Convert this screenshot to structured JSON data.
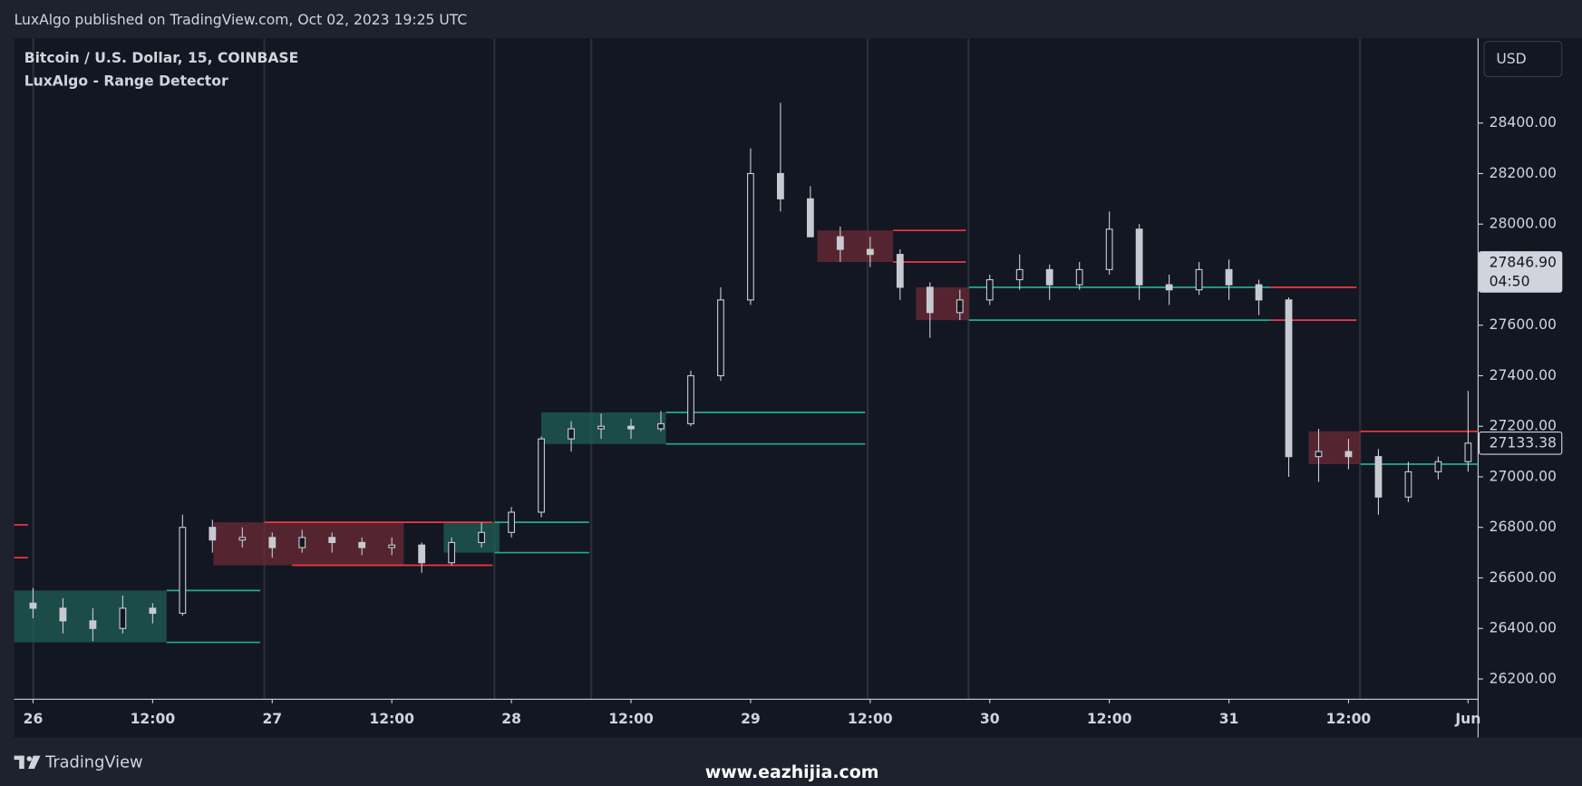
{
  "header": {
    "text": "LuxAlgo published on TradingView.com, Oct 02, 2023 19:25 UTC"
  },
  "footer": {
    "brand": "TradingView",
    "watermark": "www.eazhijia.com"
  },
  "chart_data": {
    "type": "candlestick",
    "title": "Bitcoin / U.S. Dollar, 15, COINBASE",
    "subtitle": "LuxAlgo - Range Detector",
    "currency": "USD",
    "color": "#c8cad2",
    "grid": false,
    "x": [
      0,
      3,
      6,
      9,
      12,
      15,
      18,
      21,
      24,
      27,
      30,
      33,
      36,
      39,
      42,
      45,
      48,
      51,
      54,
      57,
      60,
      63,
      66,
      69,
      72,
      75,
      78,
      81,
      84,
      87,
      90,
      93,
      96,
      99,
      102,
      105,
      108,
      111,
      114,
      117,
      120,
      123,
      126,
      129,
      132,
      135,
      138,
      141,
      144
    ],
    "open": [
      26500,
      26480,
      26430,
      26400,
      26480,
      26460,
      26800,
      26750,
      26760,
      26720,
      26760,
      26740,
      26720,
      26730,
      26660,
      26740,
      26780,
      26860,
      27150,
      27190,
      27200,
      27190,
      27210,
      27400,
      27700,
      28200,
      28100,
      27950,
      27900,
      27880,
      27750,
      27650,
      27700,
      27780,
      27820,
      27760,
      27820,
      27980,
      27760,
      27740,
      27820,
      27760,
      27700,
      27080,
      27100,
      27080,
      26920,
      27020,
      27060
    ],
    "high": [
      26560,
      26520,
      26480,
      26530,
      26500,
      26850,
      26830,
      26800,
      26780,
      26790,
      26780,
      26760,
      26760,
      26740,
      26760,
      26820,
      26880,
      27160,
      27220,
      27250,
      27230,
      27260,
      27420,
      27750,
      28300,
      28480,
      28150,
      27990,
      27950,
      27900,
      27770,
      27740,
      27800,
      27880,
      27840,
      27850,
      28050,
      28000,
      27800,
      27850,
      27860,
      27780,
      27710,
      27190,
      27150,
      27110,
      27060,
      27080,
      27340
    ],
    "low": [
      26440,
      26380,
      26350,
      26380,
      26420,
      26450,
      26700,
      26720,
      26680,
      26700,
      26700,
      26690,
      26690,
      26620,
      26650,
      26720,
      26760,
      26840,
      27100,
      27150,
      27150,
      27180,
      27200,
      27380,
      27680,
      28050,
      27950,
      27850,
      27830,
      27700,
      27550,
      27620,
      27680,
      27740,
      27700,
      27740,
      27800,
      27700,
      27680,
      27720,
      27700,
      27640,
      27000,
      26980,
      27030,
      26850,
      26900,
      26990,
      27020
    ],
    "close": [
      26480,
      26430,
      26400,
      26480,
      26460,
      26800,
      26750,
      26760,
      26720,
      26760,
      26740,
      26720,
      26730,
      26660,
      26740,
      26780,
      26860,
      27150,
      27190,
      27200,
      27190,
      27210,
      27400,
      27700,
      28200,
      28100,
      27950,
      27900,
      27880,
      27750,
      27650,
      27700,
      27780,
      27820,
      27760,
      27820,
      27980,
      27760,
      27740,
      27820,
      27760,
      27700,
      27080,
      27100,
      27080,
      26920,
      27020,
      27060,
      27133.38
    ],
    "ranges": [
      {
        "x": [
          -1.9,
          13.4
        ],
        "top": 26550,
        "bottom": 26345,
        "color": "#1f5f55"
      },
      {
        "x": [
          18.1,
          37.2
        ],
        "top": 26820,
        "bottom": 26650,
        "color": "#6b2b35"
      },
      {
        "x": [
          41.2,
          46.8
        ],
        "top": 26820,
        "bottom": 26700,
        "color": "#1f5f55"
      },
      {
        "x": [
          51,
          63.5
        ],
        "top": 27255,
        "bottom": 27130,
        "color": "#1f5f55"
      },
      {
        "x": [
          78.7,
          86.3
        ],
        "top": 27975,
        "bottom": 27850,
        "color": "#6b2b35"
      },
      {
        "x": [
          88.6,
          93.9
        ],
        "top": 27750,
        "bottom": 27620,
        "color": "#6b2b35"
      },
      {
        "x": [
          128,
          133.2
        ],
        "top": 27180,
        "bottom": 27050,
        "color": "#6b2b35"
      }
    ],
    "levels": [
      {
        "x": [
          -1.9,
          -0.5
        ],
        "value": 26810,
        "color": "#f23645"
      },
      {
        "x": [
          -1.9,
          -0.5
        ],
        "value": 26680,
        "color": "#f23645"
      },
      {
        "x": [
          13.4,
          22.8
        ],
        "value": 26550,
        "color": "#22ab94"
      },
      {
        "x": [
          13.4,
          22.8
        ],
        "value": 26345,
        "color": "#22ab94"
      },
      {
        "x": [
          23.2,
          46.1
        ],
        "value": 26820,
        "color": "#f23645"
      },
      {
        "x": [
          26,
          46.1
        ],
        "value": 26650,
        "color": "#f23645"
      },
      {
        "x": [
          46.3,
          55.8
        ],
        "value": 26820,
        "color": "#22ab94"
      },
      {
        "x": [
          46.3,
          55.8
        ],
        "value": 26700,
        "color": "#22ab94"
      },
      {
        "x": [
          63.5,
          83.5
        ],
        "value": 27255,
        "color": "#22ab94"
      },
      {
        "x": [
          63.5,
          83.5
        ],
        "value": 27130,
        "color": "#22ab94"
      },
      {
        "x": [
          86.3,
          93.6
        ],
        "value": 27975,
        "color": "#f23645"
      },
      {
        "x": [
          86.3,
          93.6
        ],
        "value": 27850,
        "color": "#f23645"
      },
      {
        "x": [
          93.9,
          124.2
        ],
        "value": 27750,
        "color": "#22ab94"
      },
      {
        "x": [
          93.9,
          124.2
        ],
        "value": 27620,
        "color": "#22ab94"
      },
      {
        "x": [
          124.2,
          132.8
        ],
        "value": 27750,
        "color": "#f23645"
      },
      {
        "x": [
          124.2,
          132.8
        ],
        "value": 27620,
        "color": "#f23645"
      },
      {
        "x": [
          133.2,
          145
        ],
        "value": 27180,
        "color": "#f23645"
      },
      {
        "x": [
          133.2,
          145
        ],
        "value": 27050,
        "color": "#22ab94"
      }
    ],
    "price_labels": [
      {
        "value": 27846.9,
        "label": "27846.90",
        "sub": "04:50"
      },
      {
        "value": 27133.38,
        "label": "27133.38"
      }
    ],
    "xlim": [
      -1.9,
      145
    ],
    "ylim": [
      26120,
      28735
    ],
    "xticks": [
      {
        "value": 0,
        "label": "26"
      },
      {
        "value": 12,
        "label": "12:00"
      },
      {
        "value": 24,
        "label": "27"
      },
      {
        "value": 36,
        "label": "12:00"
      },
      {
        "value": 48,
        "label": "28"
      },
      {
        "value": 60,
        "label": "12:00"
      },
      {
        "value": 72,
        "label": "29"
      },
      {
        "value": 84,
        "label": "12:00"
      },
      {
        "value": 96,
        "label": "30"
      },
      {
        "value": 108,
        "label": "12:00"
      },
      {
        "value": 120,
        "label": "31"
      },
      {
        "value": 132,
        "label": "12:00"
      },
      {
        "value": 144,
        "label": "Jun"
      }
    ],
    "yticks": [
      {
        "value": 26200,
        "label": "26200.00"
      },
      {
        "value": 26400,
        "label": "26400.00"
      },
      {
        "value": 26600,
        "label": "26600.00"
      },
      {
        "value": 26800,
        "label": "26800.00"
      },
      {
        "value": 27000,
        "label": "27000.00"
      },
      {
        "value": 27200,
        "label": "27200.00"
      },
      {
        "value": 27400,
        "label": "27400.00"
      },
      {
        "value": 27600,
        "label": "27600.00"
      },
      {
        "value": 27800,
        "label": "27800.00"
      },
      {
        "value": 28000,
        "label": "28000.00"
      },
      {
        "value": 28200,
        "label": "28200.00"
      },
      {
        "value": 28400,
        "label": "28400.00"
      }
    ]
  }
}
